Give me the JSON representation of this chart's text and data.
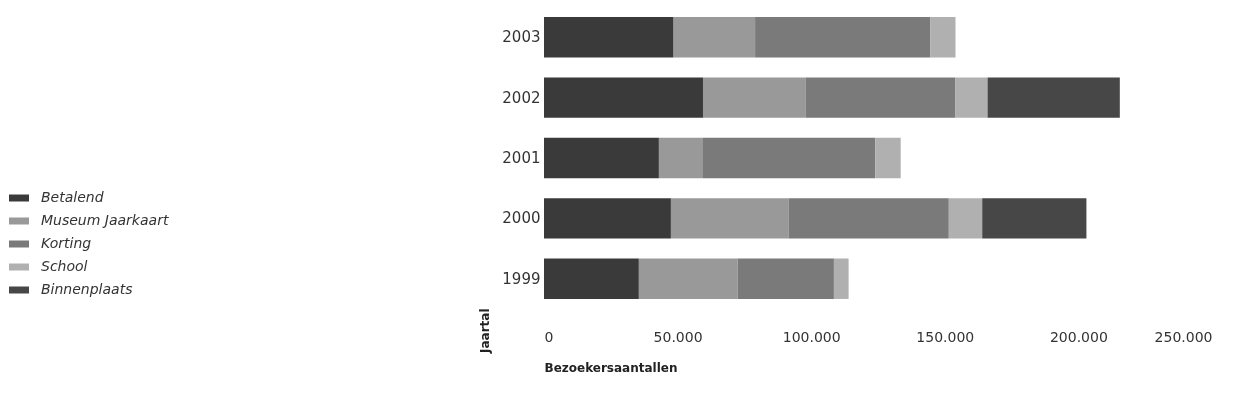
{
  "chart_data": {
    "type": "bar",
    "orientation": "horizontal",
    "stacked": true,
    "xlabel": "Bezoekersaantallen",
    "ylabel": "Jaartal",
    "categories": [
      "2003",
      "2002",
      "2001",
      "2000",
      "1999"
    ],
    "series": [
      {
        "name": "Betalend",
        "color": "#3a3a3a",
        "values": [
          48500,
          59500,
          43000,
          47500,
          35500
        ]
      },
      {
        "name": "Museum Jaarkaart",
        "color": "#999999",
        "values": [
          30500,
          38500,
          16500,
          44000,
          37000
        ]
      },
      {
        "name": "Korting",
        "color": "#7a7a7a",
        "values": [
          65500,
          56000,
          64500,
          60000,
          36000
        ]
      },
      {
        "name": "School",
        "color": "#b0b0b0",
        "values": [
          9500,
          12000,
          9500,
          12500,
          5500
        ]
      },
      {
        "name": "Binnenplaats",
        "color": "#474747",
        "values": [
          null,
          49500,
          null,
          39000,
          null
        ]
      }
    ],
    "xlim": [
      0,
      250000
    ],
    "xticks": [
      0,
      {
        "value": 50000,
        "label": "50.000"
      },
      {
        "value": 100000,
        "label": "100.000"
      },
      {
        "value": 150000,
        "label": "150.000"
      },
      {
        "value": 200000,
        "label": "200.000"
      },
      {
        "value": 250000,
        "label": "250.000"
      }
    ],
    "grid": false,
    "legend": "left"
  }
}
